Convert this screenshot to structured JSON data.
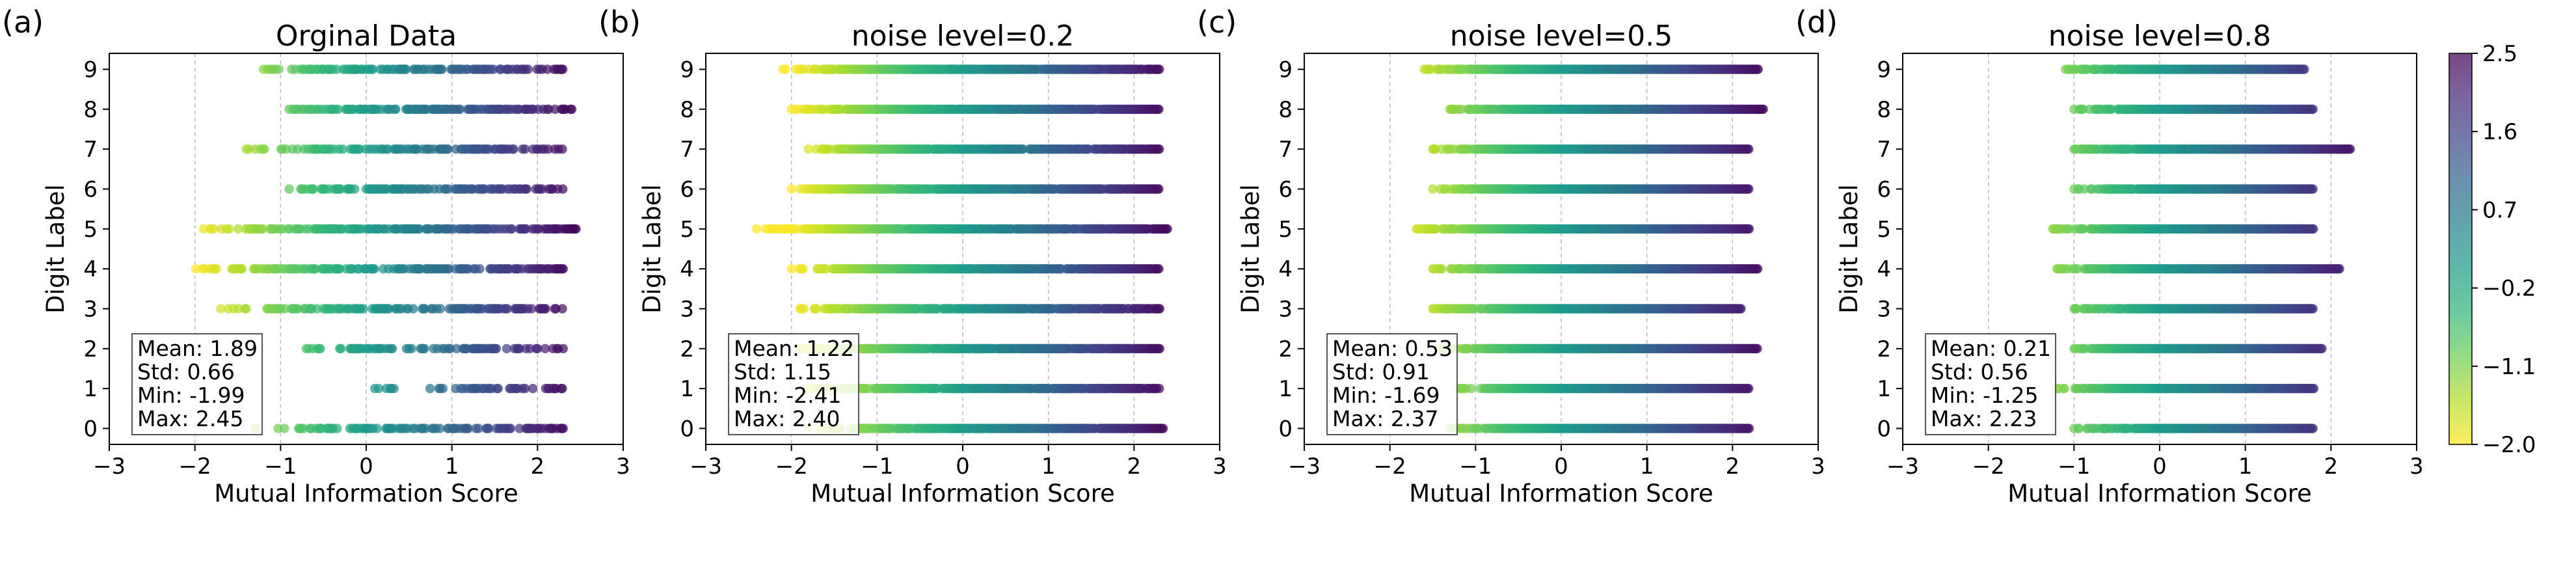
{
  "colors": {
    "viridis": [
      "#440154",
      "#482878",
      "#3e4989",
      "#31688e",
      "#26828e",
      "#1f9e89",
      "#35b779",
      "#6ece58",
      "#b5de2b",
      "#fde725"
    ],
    "grid": "#bbbbbb",
    "stats_border": "#555555"
  },
  "colorbar": {
    "ticks": [
      "2.5",
      "1.6",
      "0.7",
      "−0.2",
      "−1.1",
      "−2.0"
    ],
    "range": [
      -2.0,
      2.5
    ]
  },
  "chart_data": [
    {
      "type": "scatter",
      "letter": "(a)",
      "title": "Orginal Data",
      "xlabel": "Mutual Information Score",
      "ylabel": "Digit Label",
      "xlim": [
        -3,
        3
      ],
      "ylim": [
        -0.4,
        9.4
      ],
      "xticks": [
        "−3",
        "−2",
        "−1",
        "0",
        "1",
        "2",
        "3"
      ],
      "yticks": [
        "0",
        "1",
        "2",
        "3",
        "4",
        "5",
        "6",
        "7",
        "8",
        "9"
      ],
      "grid": "vertical dashed",
      "stats": [
        "Mean: 1.89",
        "Std: 0.66",
        "Min: -1.99",
        "Max: 2.45"
      ],
      "rows": [
        {
          "label": 0,
          "min": -1.3,
          "max": 2.3,
          "density": 0.45
        },
        {
          "label": 1,
          "min": 0.1,
          "max": 2.3,
          "density": 0.35
        },
        {
          "label": 2,
          "min": -0.7,
          "max": 2.3,
          "density": 0.45
        },
        {
          "label": 3,
          "min": -1.7,
          "max": 2.3,
          "density": 0.5
        },
        {
          "label": 4,
          "min": -1.99,
          "max": 2.3,
          "density": 0.55
        },
        {
          "label": 5,
          "min": -1.9,
          "max": 2.45,
          "density": 0.6
        },
        {
          "label": 6,
          "min": -0.9,
          "max": 2.3,
          "density": 0.5
        },
        {
          "label": 7,
          "min": -1.4,
          "max": 2.3,
          "density": 0.5
        },
        {
          "label": 8,
          "min": -0.9,
          "max": 2.4,
          "density": 0.55
        },
        {
          "label": 9,
          "min": -1.2,
          "max": 2.3,
          "density": 0.5
        }
      ]
    },
    {
      "type": "scatter",
      "letter": "(b)",
      "title": "noise level=0.2",
      "xlabel": "Mutual Information Score",
      "ylabel": "Digit Label",
      "xlim": [
        -3,
        3
      ],
      "ylim": [
        -0.4,
        9.4
      ],
      "xticks": [
        "−3",
        "−2",
        "−1",
        "0",
        "1",
        "2",
        "3"
      ],
      "yticks": [
        "0",
        "1",
        "2",
        "3",
        "4",
        "5",
        "6",
        "7",
        "8",
        "9"
      ],
      "grid": "vertical dashed",
      "stats": [
        "Mean: 1.22",
        "Std: 1.15",
        "Min: -2.41",
        "Max: 2.40"
      ],
      "rows": [
        {
          "label": 0,
          "min": -1.8,
          "max": 2.35,
          "density": 0.85
        },
        {
          "label": 1,
          "min": -1.8,
          "max": 2.3,
          "density": 0.85
        },
        {
          "label": 2,
          "min": -1.9,
          "max": 2.3,
          "density": 0.9
        },
        {
          "label": 3,
          "min": -1.9,
          "max": 2.3,
          "density": 0.85
        },
        {
          "label": 4,
          "min": -2.0,
          "max": 2.3,
          "density": 0.9
        },
        {
          "label": 5,
          "min": -2.41,
          "max": 2.4,
          "density": 0.9
        },
        {
          "label": 6,
          "min": -2.0,
          "max": 2.3,
          "density": 0.9
        },
        {
          "label": 7,
          "min": -1.8,
          "max": 2.3,
          "density": 0.9
        },
        {
          "label": 8,
          "min": -2.0,
          "max": 2.3,
          "density": 0.9
        },
        {
          "label": 9,
          "min": -2.1,
          "max": 2.3,
          "density": 0.9
        }
      ]
    },
    {
      "type": "scatter",
      "letter": "(c)",
      "title": "noise level=0.5",
      "xlabel": "Mutual Information Score",
      "ylabel": "Digit Label",
      "xlim": [
        -3,
        3
      ],
      "ylim": [
        -0.4,
        9.4
      ],
      "xticks": [
        "−3",
        "−2",
        "−1",
        "0",
        "1",
        "2",
        "3"
      ],
      "yticks": [
        "0",
        "1",
        "2",
        "3",
        "4",
        "5",
        "6",
        "7",
        "8",
        "9"
      ],
      "grid": "vertical dashed",
      "stats": [
        "Mean: 0.53",
        "Std: 0.91",
        "Min: -1.69",
        "Max: 2.37"
      ],
      "rows": [
        {
          "label": 0,
          "min": -1.3,
          "max": 2.2,
          "density": 1.0
        },
        {
          "label": 1,
          "min": -1.2,
          "max": 2.2,
          "density": 1.0
        },
        {
          "label": 2,
          "min": -1.4,
          "max": 2.3,
          "density": 1.0
        },
        {
          "label": 3,
          "min": -1.5,
          "max": 2.1,
          "density": 1.0
        },
        {
          "label": 4,
          "min": -1.5,
          "max": 2.3,
          "density": 1.0
        },
        {
          "label": 5,
          "min": -1.69,
          "max": 2.2,
          "density": 1.0
        },
        {
          "label": 6,
          "min": -1.5,
          "max": 2.2,
          "density": 1.0
        },
        {
          "label": 7,
          "min": -1.5,
          "max": 2.2,
          "density": 1.0
        },
        {
          "label": 8,
          "min": -1.3,
          "max": 2.37,
          "density": 1.0
        },
        {
          "label": 9,
          "min": -1.6,
          "max": 2.3,
          "density": 1.0
        }
      ]
    },
    {
      "type": "scatter",
      "letter": "(d)",
      "title": "noise level=0.8",
      "xlabel": "Mutual Information Score",
      "ylabel": "Digit Label",
      "xlim": [
        -3,
        3
      ],
      "ylim": [
        -0.4,
        9.4
      ],
      "xticks": [
        "−3",
        "−2",
        "−1",
        "0",
        "1",
        "2",
        "3"
      ],
      "yticks": [
        "0",
        "1",
        "2",
        "3",
        "4",
        "5",
        "6",
        "7",
        "8",
        "9"
      ],
      "grid": "vertical dashed",
      "stats": [
        "Mean: 0.21",
        "Std: 0.56",
        "Min: -1.25",
        "Max: 2.23"
      ],
      "rows": [
        {
          "label": 0,
          "min": -1.0,
          "max": 1.8,
          "density": 1.0
        },
        {
          "label": 1,
          "min": -1.2,
          "max": 1.8,
          "density": 1.0
        },
        {
          "label": 2,
          "min": -1.0,
          "max": 1.9,
          "density": 1.0
        },
        {
          "label": 3,
          "min": -1.0,
          "max": 1.8,
          "density": 1.0
        },
        {
          "label": 4,
          "min": -1.2,
          "max": 2.1,
          "density": 1.0
        },
        {
          "label": 5,
          "min": -1.25,
          "max": 1.8,
          "density": 1.0
        },
        {
          "label": 6,
          "min": -1.0,
          "max": 1.8,
          "density": 1.0
        },
        {
          "label": 7,
          "min": -1.0,
          "max": 2.23,
          "density": 1.0
        },
        {
          "label": 8,
          "min": -1.0,
          "max": 1.8,
          "density": 1.0
        },
        {
          "label": 9,
          "min": -1.1,
          "max": 1.7,
          "density": 1.0
        }
      ]
    }
  ]
}
